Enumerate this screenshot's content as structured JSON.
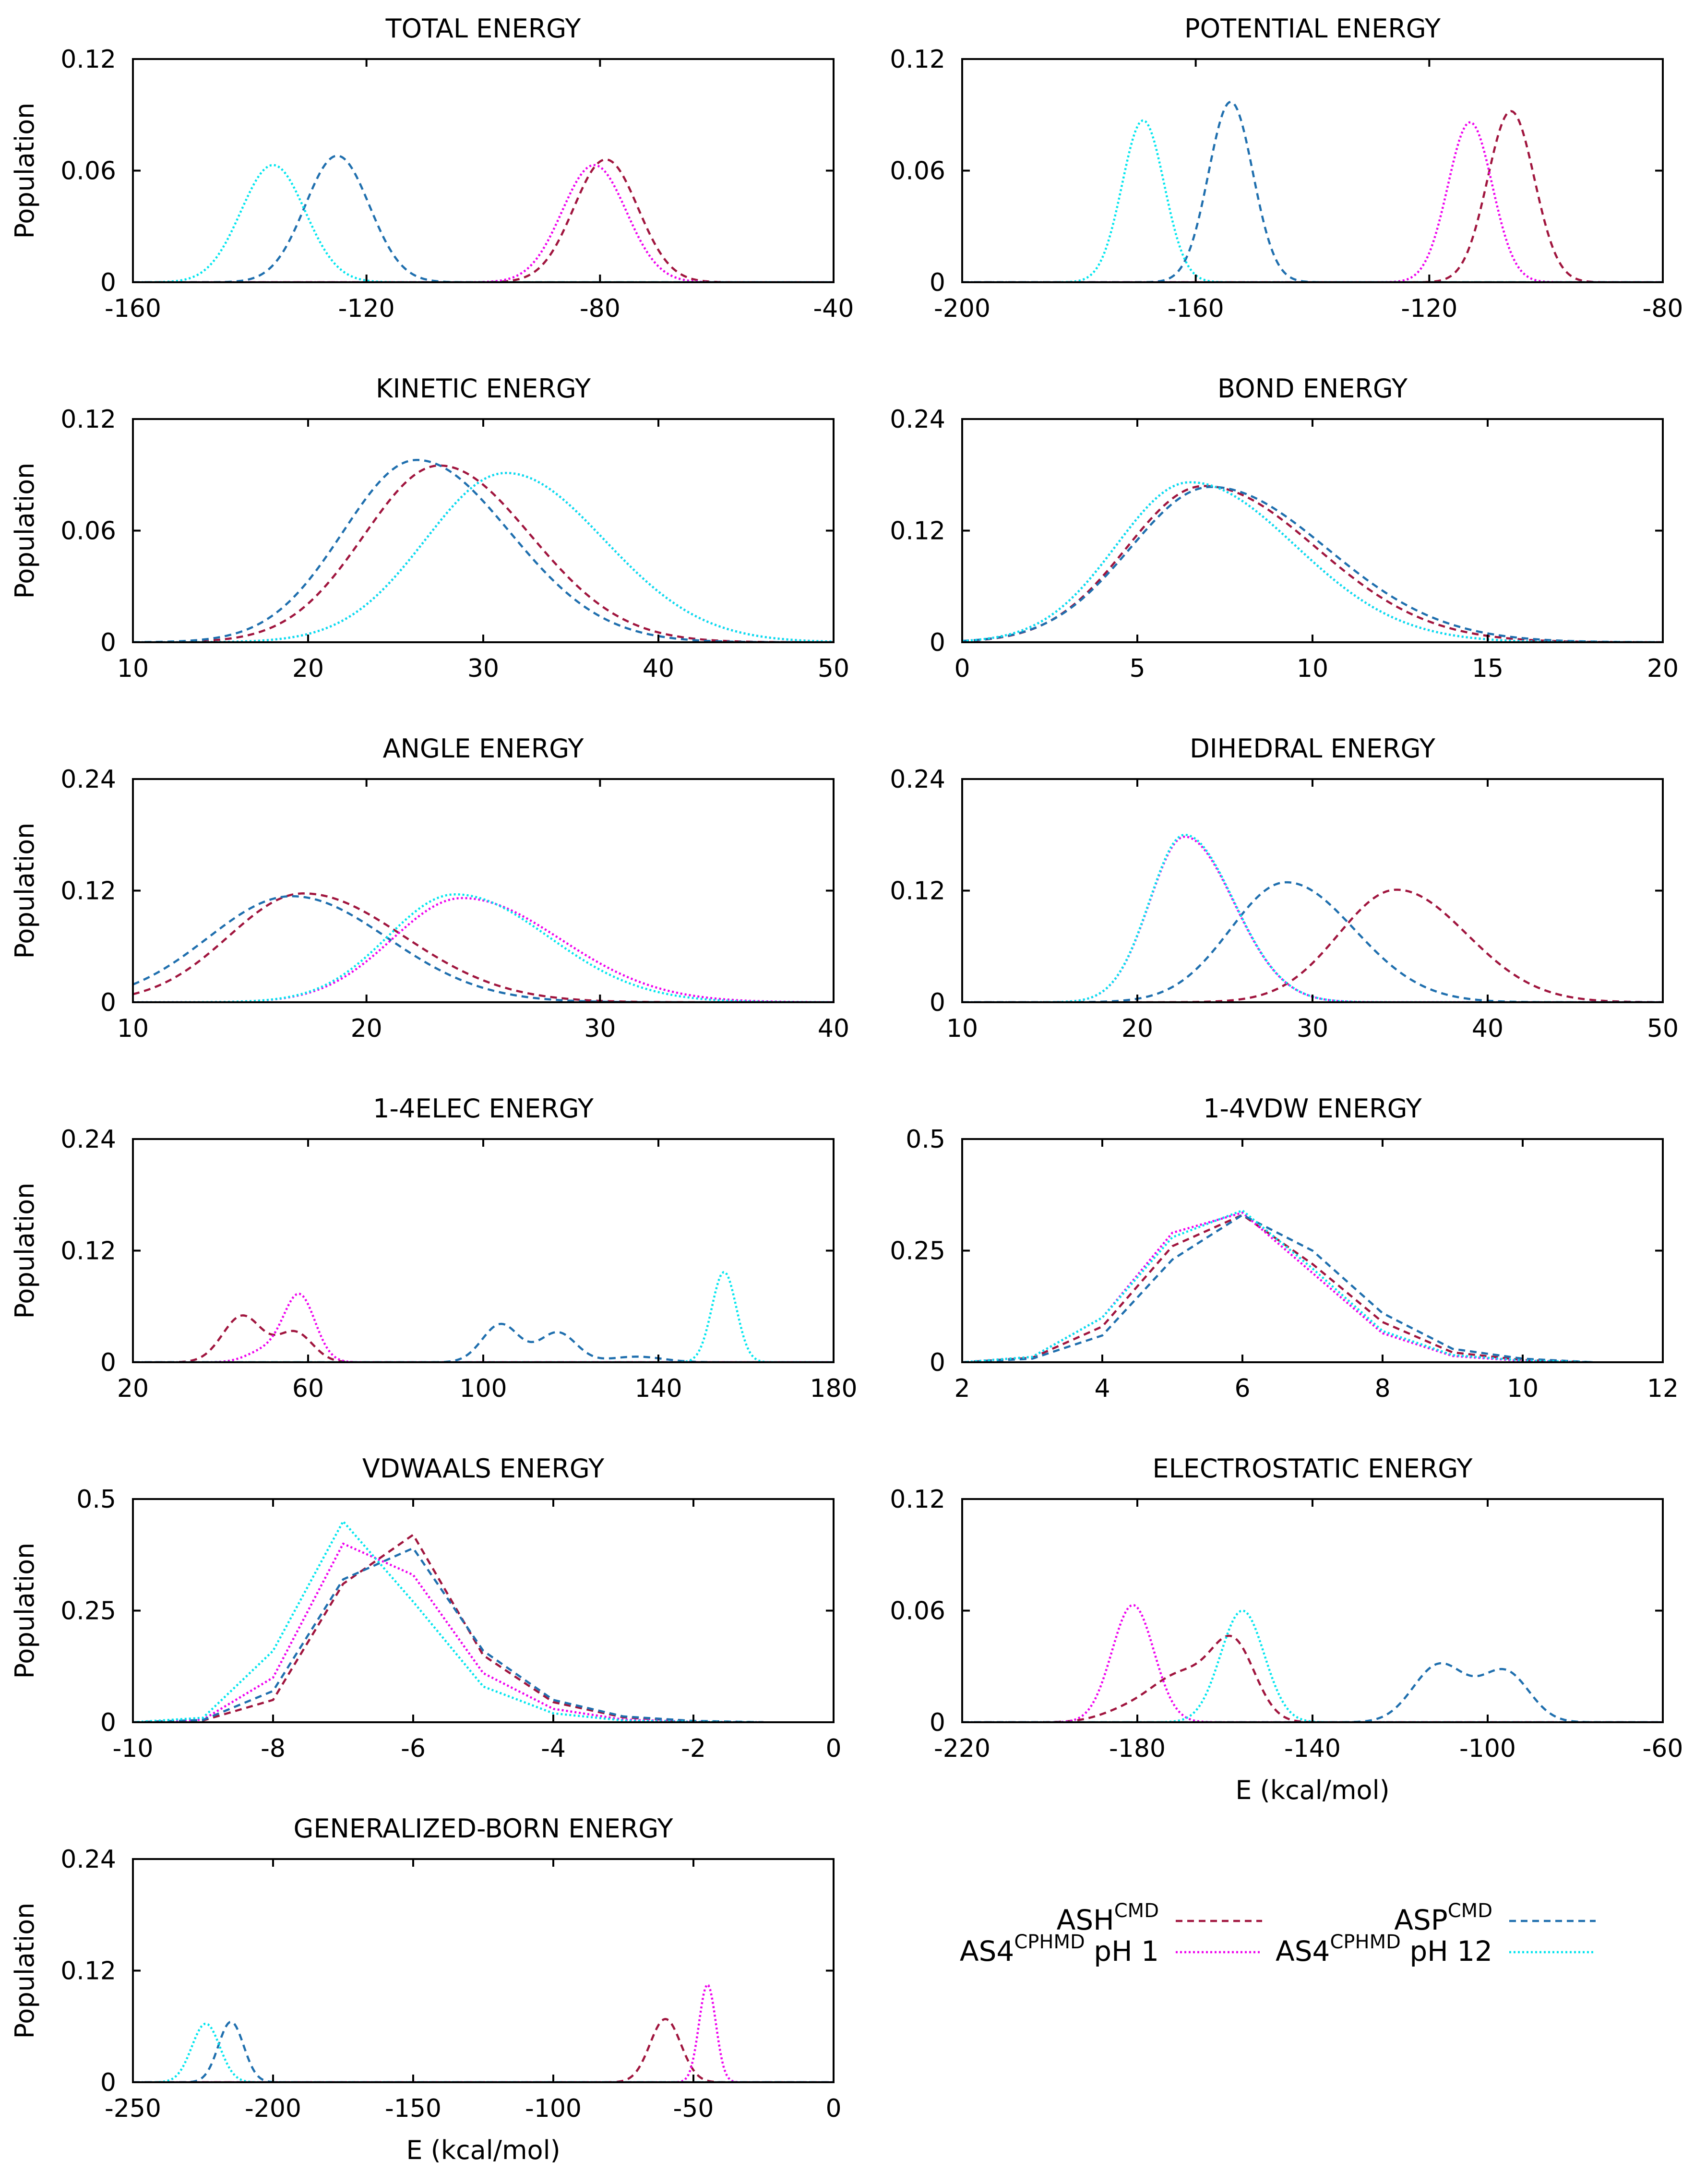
{
  "figure": {
    "xlabel": "E (kcal/mol)",
    "ylabel": "Population"
  },
  "styles": {
    "ASH": {
      "color": "#a0153e",
      "dash": "14 10"
    },
    "ASP": {
      "color": "#1f6fae",
      "dash": "14 10"
    },
    "AS4_pH1": {
      "color": "#ee00ee",
      "dash": "4 5"
    },
    "AS4_pH12": {
      "color": "#00e5ee",
      "dash": "4 5"
    }
  },
  "legend": {
    "items": [
      {
        "key": "ASH",
        "base": "ASH",
        "sup": "CMD",
        "suffix": ""
      },
      {
        "key": "AS4_pH1",
        "base": "AS4",
        "sup": "CPHMD",
        "suffix": "pH 1"
      },
      {
        "key": "ASP",
        "base": "ASP",
        "sup": "CMD",
        "suffix": ""
      },
      {
        "key": "AS4_pH12",
        "base": "AS4",
        "sup": "CPHMD",
        "suffix": "pH 12"
      }
    ]
  },
  "chart_data": [
    {
      "title": "TOTAL ENERGY",
      "type": "line",
      "ylabel": "Population",
      "xlabel": "",
      "xlim": [
        -160,
        -40
      ],
      "ylim": [
        0,
        0.12
      ],
      "xticks": [
        "-160",
        "-120",
        "-80",
        "-40"
      ],
      "yticks": [
        "0",
        "0.06",
        "0.12"
      ],
      "series": [
        {
          "name": "ASH CMD",
          "style": "ASH",
          "peaks": [
            {
              "mu": -79,
              "amp": 0.066,
              "sigma": 5.5
            }
          ]
        },
        {
          "name": "AS4 CPHMD pH 1",
          "style": "AS4_pH1",
          "peaks": [
            {
              "mu": -81,
              "amp": 0.063,
              "sigma": 5.5
            }
          ]
        },
        {
          "name": "ASP CMD",
          "style": "ASP",
          "peaks": [
            {
              "mu": -125,
              "amp": 0.068,
              "sigma": 5.5
            }
          ]
        },
        {
          "name": "AS4 CPHMD pH 12",
          "style": "AS4_pH12",
          "peaks": [
            {
              "mu": -136,
              "amp": 0.063,
              "sigma": 5.5
            }
          ]
        }
      ]
    },
    {
      "title": "POTENTIAL ENERGY",
      "type": "line",
      "ylabel": "",
      "xlabel": "",
      "xlim": [
        -200,
        -80
      ],
      "ylim": [
        0,
        0.12
      ],
      "xticks": [
        "-200",
        "-160",
        "-120",
        "-80"
      ],
      "yticks": [
        "0",
        "0.06",
        "0.12"
      ],
      "series": [
        {
          "name": "ASH CMD",
          "style": "ASH",
          "peaks": [
            {
              "mu": -106,
              "amp": 0.092,
              "sigma": 4.0
            }
          ]
        },
        {
          "name": "AS4 CPHMD pH 1",
          "style": "AS4_pH1",
          "peaks": [
            {
              "mu": -113,
              "amp": 0.086,
              "sigma": 3.8
            }
          ]
        },
        {
          "name": "ASP CMD",
          "style": "ASP",
          "peaks": [
            {
              "mu": -154,
              "amp": 0.097,
              "sigma": 3.8
            }
          ]
        },
        {
          "name": "AS4 CPHMD pH 12",
          "style": "AS4_pH12",
          "peaks": [
            {
              "mu": -169,
              "amp": 0.087,
              "sigma": 3.6
            }
          ]
        }
      ]
    },
    {
      "title": "KINETIC ENERGY",
      "type": "line",
      "ylabel": "Population",
      "xlabel": "",
      "xlim": [
        10,
        50
      ],
      "ylim": [
        0,
        0.12
      ],
      "xticks": [
        "10",
        "20",
        "30",
        "40",
        "50"
      ],
      "yticks": [
        "0",
        "0.06",
        "0.12"
      ],
      "series": [
        {
          "name": "ASH CMD",
          "style": "ASH",
          "skew": {
            "mu": 27.5,
            "amp": 0.095,
            "sl": 4.3,
            "sr": 5.2
          }
        },
        {
          "name": "AS4 CPHMD pH 1",
          "style": "AS4_pH1",
          "skew": {
            "mu": 31.3,
            "amp": 0.091,
            "sl": 4.6,
            "sr": 5.6
          }
        },
        {
          "name": "ASP CMD",
          "style": "ASP",
          "skew": {
            "mu": 26.2,
            "amp": 0.098,
            "sl": 4.2,
            "sr": 5.3
          }
        },
        {
          "name": "AS4 CPHMD pH 12",
          "style": "AS4_pH12",
          "skew": {
            "mu": 31.3,
            "amp": 0.091,
            "sl": 4.6,
            "sr": 5.6
          }
        }
      ]
    },
    {
      "title": "BOND ENERGY",
      "type": "line",
      "ylabel": "",
      "xlabel": "",
      "xlim": [
        0,
        20
      ],
      "ylim": [
        0,
        0.24
      ],
      "xticks": [
        "0",
        "5",
        "10",
        "15",
        "20"
      ],
      "yticks": [
        "0",
        "0.12",
        "0.24"
      ],
      "series": [
        {
          "name": "ASH CMD",
          "style": "ASH",
          "skew": {
            "mu": 6.9,
            "amp": 0.168,
            "sl": 2.2,
            "sr": 3.2
          }
        },
        {
          "name": "AS4 CPHMD pH 1",
          "style": "AS4_pH1",
          "skew": {
            "mu": 6.5,
            "amp": 0.172,
            "sl": 2.1,
            "sr": 3.0
          }
        },
        {
          "name": "ASP CMD",
          "style": "ASP",
          "skew": {
            "mu": 7.1,
            "amp": 0.167,
            "sl": 2.3,
            "sr": 3.3
          }
        },
        {
          "name": "AS4 CPHMD pH 12",
          "style": "AS4_pH12",
          "skew": {
            "mu": 6.5,
            "amp": 0.172,
            "sl": 2.1,
            "sr": 3.0
          }
        }
      ]
    },
    {
      "title": "ANGLE ENERGY",
      "type": "line",
      "ylabel": "Population",
      "xlabel": "",
      "xlim": [
        10,
        40
      ],
      "ylim": [
        0,
        0.24
      ],
      "xticks": [
        "10",
        "20",
        "30",
        "40"
      ],
      "yticks": [
        "0",
        "0.12",
        "0.24"
      ],
      "series": [
        {
          "name": "ASH CMD",
          "style": "ASH",
          "skew": {
            "mu": 17.3,
            "amp": 0.117,
            "sl": 3.2,
            "sr": 4.3
          }
        },
        {
          "name": "AS4 CPHMD pH 1",
          "style": "AS4_pH1",
          "skew": {
            "mu": 24.1,
            "amp": 0.112,
            "sl": 3.0,
            "sr": 4.2
          }
        },
        {
          "name": "ASP CMD",
          "style": "ASP",
          "skew": {
            "mu": 16.8,
            "amp": 0.114,
            "sl": 3.6,
            "sr": 4.1
          }
        },
        {
          "name": "AS4 CPHMD pH 12",
          "style": "AS4_pH12",
          "skew": {
            "mu": 23.8,
            "amp": 0.116,
            "sl": 2.9,
            "sr": 4.0
          }
        }
      ]
    },
    {
      "title": "DIHEDRAL ENERGY",
      "type": "line",
      "ylabel": "",
      "xlabel": "",
      "xlim": [
        10,
        50
      ],
      "ylim": [
        0,
        0.24
      ],
      "xticks": [
        "10",
        "20",
        "30",
        "40",
        "50"
      ],
      "yticks": [
        "0",
        "0.12",
        "0.24"
      ],
      "series": [
        {
          "name": "ASH CMD",
          "style": "ASH",
          "skew": {
            "mu": 34.8,
            "amp": 0.121,
            "sl": 3.3,
            "sr": 4.0
          }
        },
        {
          "name": "AS4 CPHMD pH 1",
          "style": "AS4_pH1",
          "skew": {
            "mu": 22.7,
            "amp": 0.178,
            "sl": 2.0,
            "sr": 2.8
          }
        },
        {
          "name": "ASP CMD",
          "style": "ASP",
          "skew": {
            "mu": 28.5,
            "amp": 0.129,
            "sl": 3.2,
            "sr": 3.9
          }
        },
        {
          "name": "AS4 CPHMD pH 12",
          "style": "AS4_pH12",
          "skew": {
            "mu": 22.7,
            "amp": 0.18,
            "sl": 2.0,
            "sr": 2.8
          }
        }
      ]
    },
    {
      "title": "1-4ELEC ENERGY",
      "type": "line",
      "ylabel": "Population",
      "xlabel": "",
      "xlim": [
        20,
        180
      ],
      "ylim": [
        0,
        0.24
      ],
      "xticks": [
        "20",
        "60",
        "100",
        "140",
        "180"
      ],
      "yticks": [
        "0",
        "0.12",
        "0.24"
      ],
      "series": [
        {
          "name": "ASH CMD",
          "style": "ASH",
          "peaks": [
            {
              "mu": 45,
              "amp": 0.05,
              "sigma": 4.5
            },
            {
              "mu": 57,
              "amp": 0.032,
              "sigma": 4.0
            }
          ]
        },
        {
          "name": "AS4 CPHMD pH 1",
          "style": "AS4_pH1",
          "peaks": [
            {
              "mu": 58,
              "amp": 0.072,
              "sigma": 3.6
            },
            {
              "mu": 50,
              "amp": 0.012,
              "sigma": 4.0
            }
          ]
        },
        {
          "name": "ASP CMD",
          "style": "ASP",
          "peaks": [
            {
              "mu": 104,
              "amp": 0.041,
              "sigma": 4.2
            },
            {
              "mu": 117,
              "amp": 0.032,
              "sigma": 4.2
            },
            {
              "mu": 135,
              "amp": 0.006,
              "sigma": 6.0
            }
          ]
        },
        {
          "name": "AS4 CPHMD pH 12",
          "style": "AS4_pH12",
          "peaks": [
            {
              "mu": 155,
              "amp": 0.097,
              "sigma": 2.8
            }
          ]
        }
      ]
    },
    {
      "title": "1-4VDW ENERGY",
      "type": "line",
      "ylabel": "",
      "xlabel": "",
      "xlim": [
        2,
        12
      ],
      "ylim": [
        0,
        0.5
      ],
      "xticks": [
        "2",
        "4",
        "6",
        "8",
        "10",
        "12"
      ],
      "yticks": [
        "0",
        "0.25",
        "0.5"
      ],
      "series": [
        {
          "name": "ASH CMD",
          "style": "ASH",
          "x": [
            2,
            3,
            4,
            5,
            6,
            7,
            8,
            9,
            10,
            11
          ],
          "y": [
            0,
            0.01,
            0.08,
            0.26,
            0.33,
            0.22,
            0.09,
            0.022,
            0.005,
            0
          ]
        },
        {
          "name": "AS4 CPHMD pH 1",
          "style": "AS4_pH1",
          "x": [
            2,
            3,
            4,
            5,
            6,
            7,
            8,
            9,
            10,
            11
          ],
          "y": [
            0,
            0.012,
            0.1,
            0.29,
            0.335,
            0.2,
            0.065,
            0.014,
            0.003,
            0
          ]
        },
        {
          "name": "ASP CMD",
          "style": "ASP",
          "x": [
            2,
            3,
            4,
            5,
            6,
            7,
            8,
            9,
            10,
            11
          ],
          "y": [
            0,
            0.008,
            0.06,
            0.23,
            0.33,
            0.25,
            0.11,
            0.03,
            0.008,
            0
          ]
        },
        {
          "name": "AS4 CPHMD pH 12",
          "style": "AS4_pH12",
          "x": [
            2,
            3,
            4,
            5,
            6,
            7,
            8,
            9,
            10,
            11
          ],
          "y": [
            0,
            0.012,
            0.1,
            0.28,
            0.34,
            0.21,
            0.07,
            0.016,
            0.004,
            0
          ]
        }
      ]
    },
    {
      "title": "VDWAALS ENERGY",
      "type": "line",
      "ylabel": "Population",
      "xlabel": "",
      "xlim": [
        -10,
        0
      ],
      "ylim": [
        0,
        0.5
      ],
      "xticks": [
        "-10",
        "-8",
        "-6",
        "-4",
        "-2",
        "0"
      ],
      "yticks": [
        "0",
        "0.25",
        "0.5"
      ],
      "series": [
        {
          "name": "ASH CMD",
          "style": "ASH",
          "x": [
            -10,
            -9,
            -8,
            -7,
            -6,
            -5,
            -4,
            -3,
            -2,
            -1
          ],
          "y": [
            0,
            0.004,
            0.05,
            0.31,
            0.42,
            0.15,
            0.045,
            0.011,
            0.002,
            0
          ]
        },
        {
          "name": "AS4 CPHMD pH 1",
          "style": "AS4_pH1",
          "x": [
            -10,
            -9,
            -8,
            -7,
            -6,
            -5,
            -4,
            -3,
            -2,
            -1
          ],
          "y": [
            0,
            0.006,
            0.1,
            0.4,
            0.33,
            0.11,
            0.03,
            0.006,
            0.001,
            0
          ]
        },
        {
          "name": "ASP CMD",
          "style": "ASP",
          "x": [
            -10,
            -9,
            -8,
            -7,
            -6,
            -5,
            -4,
            -3,
            -2,
            -1
          ],
          "y": [
            0,
            0.005,
            0.07,
            0.32,
            0.39,
            0.16,
            0.05,
            0.013,
            0.003,
            0
          ]
        },
        {
          "name": "AS4 CPHMD pH 12",
          "style": "AS4_pH12",
          "x": [
            -10,
            -9,
            -8,
            -7,
            -6,
            -5,
            -4,
            -3,
            -2,
            -1
          ],
          "y": [
            0,
            0.01,
            0.16,
            0.45,
            0.27,
            0.08,
            0.02,
            0.004,
            0.001,
            0
          ]
        }
      ]
    },
    {
      "title": "ELECTROSTATIC ENERGY",
      "type": "line",
      "ylabel": "",
      "xlabel": "E (kcal/mol)",
      "xlim": [
        -220,
        -60
      ],
      "ylim": [
        0,
        0.12
      ],
      "xticks": [
        "-220",
        "-180",
        "-140",
        "-100",
        "-60"
      ],
      "yticks": [
        "0",
        "0.06",
        "0.12"
      ],
      "series": [
        {
          "name": "ASH CMD",
          "style": "ASH",
          "peaks": [
            {
              "mu": -158,
              "amp": 0.04,
              "sigma": 5.0
            },
            {
              "mu": -170,
              "amp": 0.025,
              "sigma": 7.0
            },
            {
              "mu": -183,
              "amp": 0.005,
              "sigma": 6.0
            }
          ]
        },
        {
          "name": "AS4 CPHMD pH 1",
          "style": "AS4_pH1",
          "peaks": [
            {
              "mu": -181,
              "amp": 0.063,
              "sigma": 4.8
            }
          ]
        },
        {
          "name": "ASP CMD",
          "style": "ASP",
          "peaks": [
            {
              "mu": -111,
              "amp": 0.031,
              "sigma": 6.0
            },
            {
              "mu": -96,
              "amp": 0.027,
              "sigma": 5.5
            }
          ]
        },
        {
          "name": "AS4 CPHMD pH 12",
          "style": "AS4_pH12",
          "peaks": [
            {
              "mu": -156,
              "amp": 0.06,
              "sigma": 5.0
            }
          ]
        }
      ]
    },
    {
      "title": "GENERALIZED-BORN ENERGY",
      "type": "line",
      "ylabel": "Population",
      "xlabel": "E (kcal/mol)",
      "xlim": [
        -250,
        0
      ],
      "ylim": [
        0,
        0.24
      ],
      "xticks": [
        "-250",
        "-200",
        "-150",
        "-100",
        "-50",
        "0"
      ],
      "yticks": [
        "0",
        "0.12",
        "0.24"
      ],
      "series": [
        {
          "name": "ASH CMD",
          "style": "ASH",
          "peaks": [
            {
              "mu": -60,
              "amp": 0.068,
              "sigma": 5.5
            }
          ]
        },
        {
          "name": "AS4 CPHMD pH 1",
          "style": "AS4_pH1",
          "peaks": [
            {
              "mu": -45,
              "amp": 0.105,
              "sigma": 3.0
            }
          ]
        },
        {
          "name": "ASP CMD",
          "style": "ASP",
          "peaks": [
            {
              "mu": -215,
              "amp": 0.065,
              "sigma": 4.5
            }
          ]
        },
        {
          "name": "AS4 CPHMD pH 12",
          "style": "AS4_pH12",
          "peaks": [
            {
              "mu": -224,
              "amp": 0.063,
              "sigma": 5.0
            }
          ]
        }
      ]
    }
  ]
}
